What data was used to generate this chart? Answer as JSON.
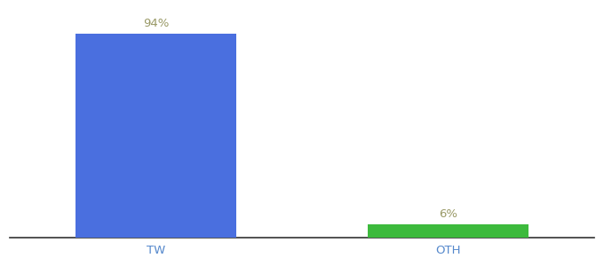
{
  "categories": [
    "TW",
    "OTH"
  ],
  "values": [
    94,
    6
  ],
  "bar_colors": [
    "#4a6fdf",
    "#3dba3d"
  ],
  "label_texts": [
    "94%",
    "6%"
  ],
  "background_color": "#ffffff",
  "ylim": [
    0,
    105
  ],
  "xlim": [
    -0.5,
    1.5
  ],
  "bar_width": 0.55,
  "label_fontsize": 9.5,
  "tick_fontsize": 9.5,
  "label_color": "#999966",
  "tick_color": "#5588cc",
  "spine_color": "#333333"
}
